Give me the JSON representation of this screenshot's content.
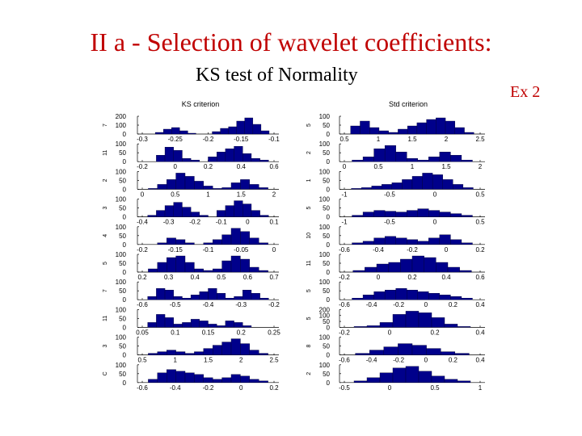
{
  "slide": {
    "title": "II a - Selection of wavelet coefficients:",
    "subtitle": "KS test of Normality",
    "example_label": "Ex 2",
    "title_color": "#c00000",
    "bar_color": "#00008b"
  },
  "chart_data": [
    {
      "type": "bar",
      "title": "KS criterion",
      "panels": [
        {
          "ylabel": "7",
          "yticks": [
            "0",
            "100",
            "200"
          ],
          "xticks": [
            "-0.3",
            "-0.25",
            "-0.2",
            "-0.15",
            "-0.1"
          ],
          "values": [
            0,
            0,
            10,
            30,
            40,
            20,
            5,
            0,
            0,
            15,
            35,
            45,
            80,
            100,
            60,
            20,
            0
          ]
        },
        {
          "ylabel": "11",
          "yticks": [
            "0",
            "50",
            "100"
          ],
          "xticks": [
            "-0.2",
            "0",
            "0.2",
            "0.4",
            "0.6"
          ],
          "values": [
            0,
            0,
            40,
            90,
            70,
            20,
            10,
            0,
            30,
            60,
            80,
            95,
            50,
            20,
            10,
            0
          ]
        },
        {
          "ylabel": "2",
          "yticks": [
            "0",
            "50",
            "100"
          ],
          "xticks": [
            "0",
            "0.5",
            "1",
            "1.5",
            "2"
          ],
          "values": [
            0,
            5,
            30,
            60,
            100,
            80,
            50,
            20,
            5,
            10,
            40,
            60,
            30,
            10,
            0
          ]
        },
        {
          "ylabel": "3",
          "yticks": [
            "0",
            "50",
            "100"
          ],
          "xticks": [
            "-0.4",
            "-0.3",
            "-0.2",
            "-0.1",
            "0",
            "0.1"
          ],
          "values": [
            0,
            10,
            40,
            70,
            90,
            60,
            30,
            10,
            0,
            40,
            70,
            100,
            80,
            40,
            10,
            0
          ]
        },
        {
          "ylabel": "4",
          "yticks": [
            "0",
            "50",
            "100"
          ],
          "xticks": [
            "-0.2",
            "-0.15",
            "-0.1",
            "-0.05",
            "0"
          ],
          "values": [
            0,
            0,
            10,
            40,
            30,
            10,
            0,
            10,
            30,
            60,
            100,
            80,
            40,
            10,
            0
          ]
        },
        {
          "ylabel": "5",
          "yticks": [
            "0",
            "50",
            "100"
          ],
          "xticks": [
            "0.2",
            "0.3",
            "0.4",
            "0.5",
            "0.6",
            "0.7"
          ],
          "values": [
            0,
            20,
            60,
            90,
            100,
            60,
            20,
            10,
            20,
            70,
            100,
            80,
            30,
            10,
            0
          ]
        },
        {
          "ylabel": "7",
          "yticks": [
            "0",
            "50",
            "100"
          ],
          "xticks": [
            "-0.6",
            "-0.5",
            "-0.4",
            "-0.3",
            "-0.2"
          ],
          "values": [
            0,
            20,
            70,
            60,
            20,
            10,
            30,
            50,
            70,
            40,
            10,
            20,
            60,
            40,
            10,
            0
          ]
        },
        {
          "ylabel": "11",
          "yticks": [
            "0",
            "50",
            "100"
          ],
          "xticks": [
            "0.05",
            "0.1",
            "0.15",
            "0.2",
            "0.25"
          ],
          "values": [
            0,
            30,
            80,
            60,
            20,
            30,
            50,
            40,
            20,
            10,
            40,
            30,
            10,
            0,
            0,
            0
          ]
        },
        {
          "ylabel": "3",
          "yticks": [
            "0",
            "50",
            "100"
          ],
          "xticks": [
            "0.5",
            "1",
            "1.5",
            "2",
            "2.5"
          ],
          "values": [
            0,
            10,
            20,
            30,
            20,
            10,
            20,
            40,
            60,
            80,
            100,
            70,
            30,
            10,
            0
          ]
        },
        {
          "ylabel": "C",
          "yticks": [
            "0",
            "50",
            "100"
          ],
          "xticks": [
            "-0.6",
            "-0.4",
            "-0.2",
            "0",
            "0.2"
          ],
          "values": [
            0,
            20,
            60,
            80,
            70,
            60,
            50,
            30,
            20,
            30,
            50,
            40,
            20,
            10,
            0
          ]
        }
      ]
    },
    {
      "type": "bar",
      "title": "Std criterion",
      "panels": [
        {
          "ylabel": "5",
          "yticks": [
            "0",
            "50",
            "100"
          ],
          "xticks": [
            "0.5",
            "1",
            "1.5",
            "2",
            "2.5"
          ],
          "values": [
            0,
            50,
            80,
            40,
            20,
            10,
            30,
            50,
            70,
            90,
            100,
            80,
            40,
            10,
            0
          ]
        },
        {
          "ylabel": "2",
          "yticks": [
            "0",
            "50",
            "100"
          ],
          "xticks": [
            "0",
            "0.5",
            "1",
            "1.5",
            "2"
          ],
          "values": [
            0,
            10,
            30,
            80,
            100,
            60,
            20,
            10,
            30,
            60,
            40,
            10,
            0
          ]
        },
        {
          "ylabel": "1",
          "yticks": [
            "0",
            "50",
            "100"
          ],
          "xticks": [
            "-1",
            "-0.5",
            "0",
            "0.5"
          ],
          "values": [
            0,
            5,
            10,
            20,
            30,
            40,
            60,
            80,
            100,
            90,
            60,
            30,
            10,
            0
          ]
        },
        {
          "ylabel": "5",
          "yticks": [
            "0",
            "50",
            "100"
          ],
          "xticks": [
            "-1",
            "-0.5",
            "0",
            "0.5"
          ],
          "values": [
            0,
            10,
            30,
            40,
            35,
            30,
            40,
            50,
            40,
            30,
            20,
            10,
            0
          ]
        },
        {
          "ylabel": "10",
          "yticks": [
            "0",
            "50",
            "100"
          ],
          "xticks": [
            "-0.6",
            "-0.4",
            "-0.2",
            "0",
            "0.2"
          ],
          "values": [
            0,
            10,
            20,
            40,
            50,
            40,
            30,
            20,
            40,
            60,
            30,
            10,
            0
          ]
        },
        {
          "ylabel": "11",
          "yticks": [
            "0",
            "50",
            "100"
          ],
          "xticks": [
            "-0.2",
            "0",
            "0.2",
            "0.4",
            "0.6"
          ],
          "values": [
            0,
            10,
            30,
            50,
            60,
            80,
            100,
            90,
            60,
            30,
            10,
            0
          ]
        },
        {
          "ylabel": "5",
          "yticks": [
            "0",
            "50",
            "100"
          ],
          "xticks": [
            "-0.6",
            "-0.4",
            "-0.2",
            "0",
            "0.2",
            "0.4"
          ],
          "values": [
            0,
            10,
            30,
            50,
            60,
            70,
            60,
            50,
            40,
            30,
            20,
            10,
            0
          ]
        },
        {
          "ylabel": "5",
          "yticks": [
            "0",
            "50",
            "100",
            "200"
          ],
          "xticks": [
            "-0.2",
            "0",
            "0.2",
            "0.4"
          ],
          "values": [
            0,
            5,
            10,
            30,
            80,
            100,
            90,
            60,
            20,
            5,
            0
          ]
        },
        {
          "ylabel": "8",
          "yticks": [
            "0",
            "50",
            "100"
          ],
          "xticks": [
            "-0.6",
            "-0.4",
            "-0.2",
            "0",
            "0.2",
            "0.4"
          ],
          "values": [
            0,
            10,
            30,
            50,
            70,
            60,
            40,
            20,
            10,
            0
          ]
        },
        {
          "ylabel": "2",
          "yticks": [
            "0",
            "50",
            "100"
          ],
          "xticks": [
            "-0.5",
            "0",
            "0.5",
            "1"
          ],
          "values": [
            0,
            10,
            30,
            60,
            90,
            100,
            70,
            40,
            20,
            10,
            0
          ]
        }
      ]
    }
  ]
}
